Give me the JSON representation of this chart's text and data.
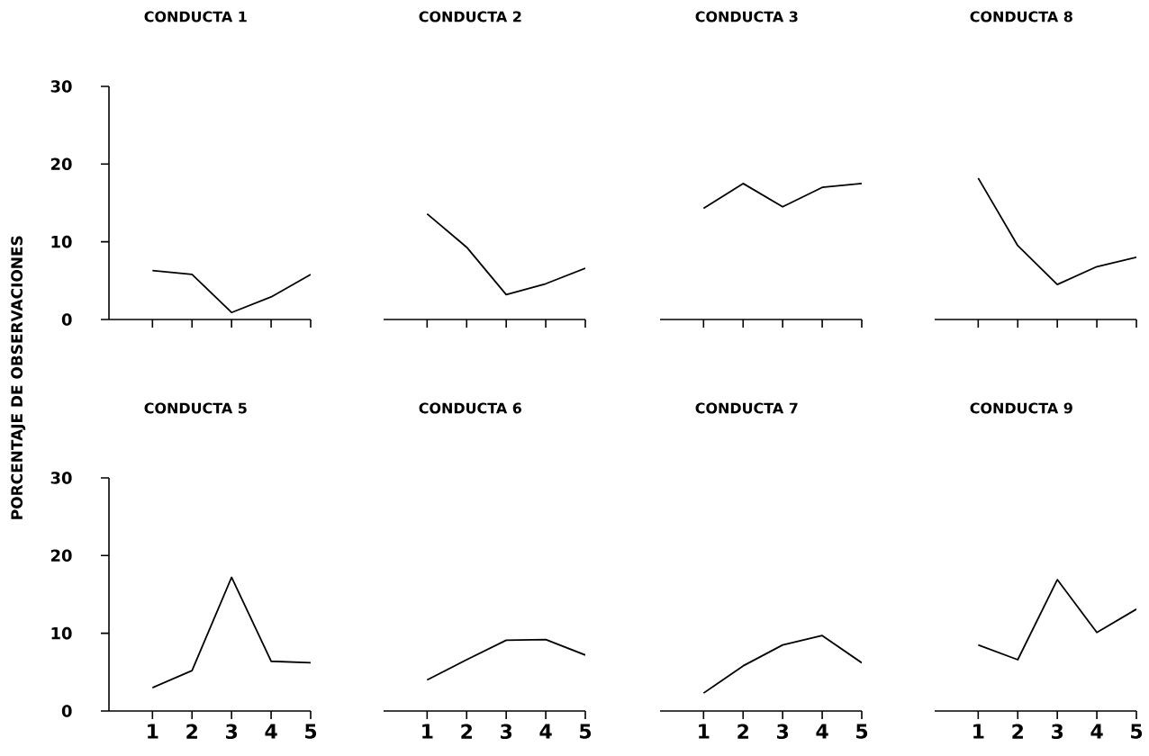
{
  "chart_data": [
    {
      "type": "line",
      "title": "CONDUCTA 1",
      "ylabel": "PORCENTAJE DE OBSERVACIONES",
      "categories": [
        "1",
        "2",
        "3",
        "4",
        "5"
      ],
      "series": [
        {
          "color": "#000000",
          "values": [
            6.3,
            5.8,
            0.9,
            2.9,
            5.8
          ]
        }
      ],
      "ylim": [
        0,
        30
      ],
      "yticks": [
        0,
        10,
        20,
        30
      ],
      "tick_labels": "y"
    },
    {
      "type": "line",
      "title": "CONDUCTA 2",
      "categories": [
        "1",
        "2",
        "3",
        "4",
        "5"
      ],
      "series": [
        {
          "color": "#000000",
          "values": [
            13.6,
            9.3,
            3.2,
            4.6,
            6.6
          ]
        }
      ],
      "ylim": [
        0,
        30
      ],
      "tick_labels": false
    },
    {
      "type": "line",
      "title": "CONDUCTA 3",
      "categories": [
        "1",
        "2",
        "3",
        "4",
        "5"
      ],
      "series": [
        {
          "color": "#000000",
          "values": [
            14.3,
            17.5,
            14.5,
            17,
            17.5
          ]
        }
      ],
      "ylim": [
        0,
        30
      ],
      "tick_labels": false
    },
    {
      "type": "line",
      "title": "CONDUCTA 8",
      "categories": [
        "1",
        "2",
        "3",
        "4",
        "5"
      ],
      "series": [
        {
          "color": "#000000",
          "values": [
            18.2,
            9.5,
            4.5,
            6.8,
            8
          ]
        }
      ],
      "ylim": [
        0,
        30
      ],
      "tick_labels": false
    },
    {
      "type": "line",
      "title": "CONDUCTA 5",
      "categories": [
        "1",
        "2",
        "3",
        "4",
        "5"
      ],
      "series": [
        {
          "color": "#000000",
          "values": [
            3,
            5.2,
            17.2,
            6.4,
            6.2
          ]
        }
      ],
      "ylim": [
        0,
        30
      ],
      "yticks": [
        0,
        10,
        20,
        30
      ]
    },
    {
      "type": "line",
      "title": "CONDUCTA 6",
      "categories": [
        "1",
        "2",
        "3",
        "4",
        "5"
      ],
      "series": [
        {
          "color": "#000000",
          "values": [
            4,
            6.6,
            9.1,
            9.2,
            7.2
          ]
        }
      ],
      "ylim": [
        0,
        30
      ],
      "tick_labels": "x"
    },
    {
      "type": "line",
      "title": "CONDUCTA 7",
      "categories": [
        "1",
        "2",
        "3",
        "4",
        "5"
      ],
      "series": [
        {
          "color": "#000000",
          "values": [
            2.3,
            5.8,
            8.5,
            9.7,
            6.2
          ]
        }
      ],
      "ylim": [
        0,
        30
      ],
      "tick_labels": "x"
    },
    {
      "type": "line",
      "title": "CONDUCTA 9",
      "categories": [
        "1",
        "2",
        "3",
        "4",
        "5"
      ],
      "series": [
        {
          "color": "#000000",
          "values": [
            8.5,
            6.6,
            16.9,
            10.1,
            13.1
          ]
        }
      ],
      "ylim": [
        0,
        30
      ],
      "tick_labels": "x"
    }
  ]
}
